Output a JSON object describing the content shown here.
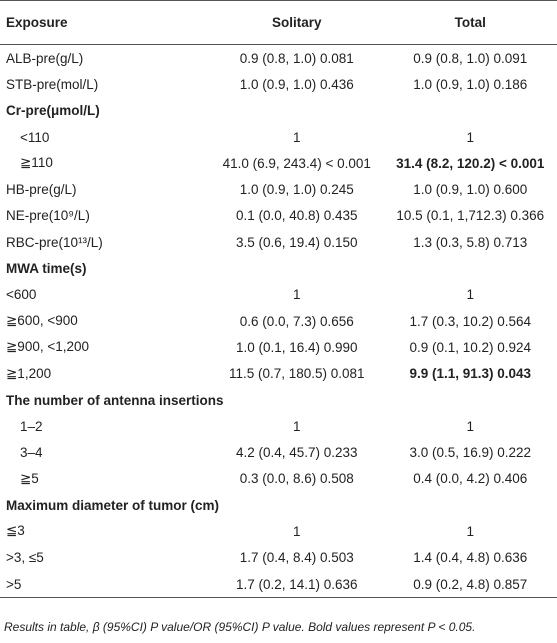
{
  "table": {
    "headers": [
      "Exposure",
      "Solitary",
      "Total"
    ],
    "rows": [
      {
        "cells": [
          "ALB-pre(g/L)",
          "0.9 (0.8, 1.0) 0.081",
          "0.9 (0.8, 1.0) 0.091"
        ]
      },
      {
        "cells": [
          "STB-pre(mol/L)",
          "1.0 (0.9, 1.0) 0.436",
          "1.0 (0.9, 1.0) 0.186"
        ]
      },
      {
        "cells": [
          "Cr-pre(μmol/L)"
        ],
        "section": true
      },
      {
        "cells": [
          "<110",
          "1",
          "1"
        ],
        "indent": true
      },
      {
        "cells": [
          "≧110",
          "41.0 (6.9, 243.4) < 0.001",
          "31.4 (8.2, 120.2) < 0.001"
        ],
        "indent": true,
        "bold": [
          2
        ]
      },
      {
        "cells": [
          "HB-pre(g/L)",
          "1.0 (0.9, 1.0) 0.245",
          "1.0 (0.9, 1.0) 0.600"
        ]
      },
      {
        "cells": [
          "NE-pre(10⁹/L)",
          "0.1 (0.0, 40.8) 0.435",
          "10.5 (0.1, 1,712.3) 0.366"
        ]
      },
      {
        "cells": [
          "RBC-pre(10¹³/L)",
          "3.5 (0.6, 19.4) 0.150",
          "1.3 (0.3, 5.8) 0.713"
        ]
      },
      {
        "cells": [
          "MWA time(s)"
        ],
        "section": true
      },
      {
        "cells": [
          "<600",
          "1",
          "1"
        ]
      },
      {
        "cells": [
          "≧600, <900",
          "0.6 (0.0, 7.3) 0.656",
          "1.7 (0.3, 10.2) 0.564"
        ]
      },
      {
        "cells": [
          "≧900, <1,200",
          "1.0 (0.1, 16.4) 0.990",
          "0.9 (0.1, 10.2) 0.924"
        ]
      },
      {
        "cells": [
          "≧1,200",
          "11.5 (0.7, 180.5) 0.081",
          "9.9 (1.1, 91.3) 0.043"
        ],
        "bold": [
          2
        ]
      },
      {
        "cells": [
          "The number of antenna insertions"
        ],
        "section": true
      },
      {
        "cells": [
          "1–2",
          "1",
          "1"
        ],
        "indent": true
      },
      {
        "cells": [
          "3–4",
          "4.2 (0.4, 45.7) 0.233",
          "3.0 (0.5, 16.9) 0.222"
        ],
        "indent": true
      },
      {
        "cells": [
          "≧5",
          "0.3 (0.0, 8.6) 0.508",
          "0.4 (0.0, 4.2) 0.406"
        ],
        "indent": true
      },
      {
        "cells": [
          "Maximum diameter of tumor (cm)"
        ],
        "section": true
      },
      {
        "cells": [
          "≦3",
          "1",
          "1"
        ]
      },
      {
        "cells": [
          ">3, ≤5",
          "1.7 (0.4, 8.4) 0.503",
          "1.4 (0.4, 4.8) 0.636"
        ]
      },
      {
        "cells": [
          ">5",
          "1.7 (0.2, 14.1) 0.636",
          "0.9 (0.2, 4.8) 0.857"
        ]
      }
    ]
  },
  "footnote": "Results in table, β (95%CI) P value/OR (95%CI) P value. Bold values represent P < 0.05."
}
